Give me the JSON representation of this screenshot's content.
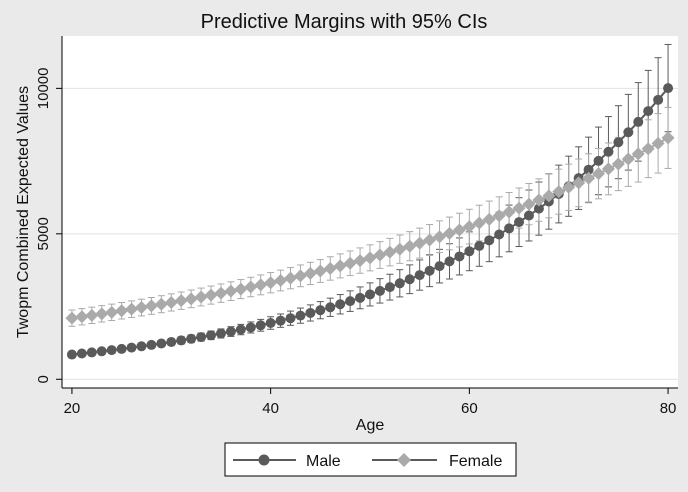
{
  "chart_data": {
    "type": "line",
    "title": "Predictive Margins with 95% CIs",
    "xlabel": "Age",
    "ylabel": "Twopm Combined Expected Values",
    "xlim": [
      19,
      81
    ],
    "ylim": [
      -300,
      11800
    ],
    "x_ticks": [
      20,
      40,
      60,
      80
    ],
    "y_ticks": [
      0,
      5000,
      10000
    ],
    "grid": "horizontal",
    "legend_position": "bottom",
    "colors": {
      "background": "#eaeaea",
      "plot": "#ffffff",
      "male": "#5a5a5a",
      "female": "#aaaaaa",
      "grid": "#e2e2e2"
    },
    "series": [
      {
        "name": "Male",
        "color": "#5a5a5a",
        "marker": "circle",
        "base": 850,
        "growth": 0.0411,
        "x_range": [
          20,
          80
        ],
        "ci": {
          "at_start": 90,
          "at_end": 1500
        },
        "y_first": 850,
        "y_last": 9800
      },
      {
        "name": "Female",
        "color": "#aaaaaa",
        "marker": "diamond",
        "base": 2100,
        "growth": 0.0229,
        "x_range": [
          20,
          80
        ],
        "ci": {
          "at_start": 280,
          "at_end": 1050
        },
        "y_first": 2100,
        "y_last": 8250
      }
    ]
  },
  "legend": {
    "male_label": "Male",
    "female_label": "Female"
  }
}
